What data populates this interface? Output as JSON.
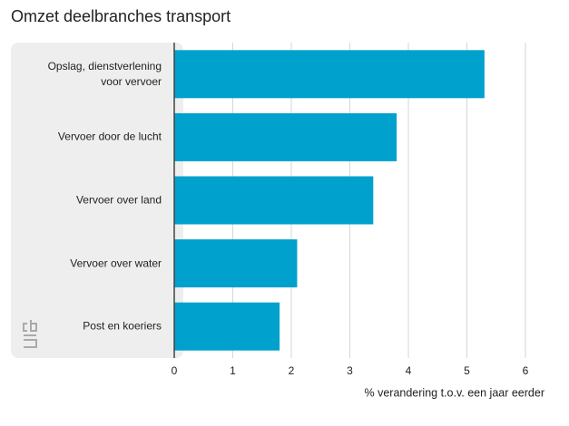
{
  "chart_data": {
    "type": "bar",
    "orientation": "horizontal",
    "title": "Omzet deelbranches transport",
    "categories": [
      "Opslag, dienstverlening voor vervoer",
      "Vervoer door de lucht",
      "Vervoer over land",
      "Vervoer over water",
      "Post en koeriers"
    ],
    "values": [
      5.3,
      3.8,
      3.4,
      2.1,
      1.8
    ],
    "color": "#00a1cd",
    "xlim": [
      0,
      6
    ],
    "xticks": [
      0,
      1,
      2,
      3,
      4,
      5,
      6
    ],
    "grid": true,
    "xlabel": "% verandering t.o.v. een jaar eerder"
  }
}
